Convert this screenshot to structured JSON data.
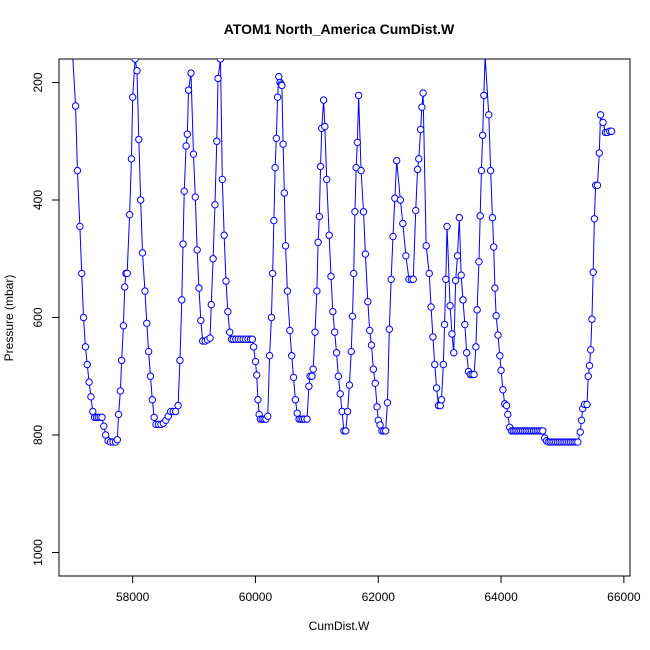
{
  "chart_data": {
    "type": "line",
    "title": "ATOM1 North_America CumDist.W",
    "xlabel": "CumDist.W",
    "ylabel": "Pressure (mbar)",
    "xlim": [
      56800,
      66100
    ],
    "ylim": [
      1040,
      160
    ],
    "y_reversed": true,
    "grid": false,
    "legend": "none",
    "x_ticks": [
      58000,
      60000,
      62000,
      64000,
      66000
    ],
    "y_ticks": [
      200,
      400,
      600,
      800,
      1000
    ],
    "line_color": "#0000ff",
    "marker": "open-circle",
    "series": [
      {
        "values": [
          [
            57020,
            150
          ],
          [
            57070,
            240
          ],
          [
            57100,
            350
          ],
          [
            57140,
            445
          ],
          [
            57170,
            525
          ],
          [
            57200,
            600
          ],
          [
            57230,
            650
          ],
          [
            57260,
            680
          ],
          [
            57290,
            710
          ],
          [
            57320,
            735
          ],
          [
            57350,
            760
          ],
          [
            57380,
            770
          ],
          [
            57410,
            770
          ],
          [
            57440,
            770
          ],
          [
            57470,
            770
          ],
          [
            57500,
            770
          ],
          [
            57530,
            785
          ],
          [
            57560,
            800
          ],
          [
            57600,
            810
          ],
          [
            57640,
            812
          ],
          [
            57680,
            812
          ],
          [
            57720,
            812
          ],
          [
            57750,
            808
          ],
          [
            57770,
            765
          ],
          [
            57800,
            725
          ],
          [
            57820,
            673
          ],
          [
            57850,
            614
          ],
          [
            57870,
            548
          ],
          [
            57890,
            525
          ],
          [
            57910,
            525
          ],
          [
            57950,
            425
          ],
          [
            57980,
            330
          ],
          [
            58000,
            225
          ],
          [
            58040,
            160
          ],
          [
            58070,
            180
          ],
          [
            58100,
            297
          ],
          [
            58130,
            400
          ],
          [
            58160,
            490
          ],
          [
            58200,
            555
          ],
          [
            58230,
            610
          ],
          [
            58260,
            658
          ],
          [
            58290,
            700
          ],
          [
            58320,
            740
          ],
          [
            58350,
            770
          ],
          [
            58380,
            782
          ],
          [
            58420,
            782
          ],
          [
            58460,
            782
          ],
          [
            58500,
            780
          ],
          [
            58540,
            775
          ],
          [
            58580,
            768
          ],
          [
            58620,
            760
          ],
          [
            58660,
            760
          ],
          [
            58700,
            760
          ],
          [
            58740,
            750
          ],
          [
            58770,
            673
          ],
          [
            58800,
            570
          ],
          [
            58820,
            475
          ],
          [
            58840,
            385
          ],
          [
            58870,
            308
          ],
          [
            58890,
            288
          ],
          [
            58910,
            213
          ],
          [
            58950,
            184
          ],
          [
            58990,
            322
          ],
          [
            59020,
            395
          ],
          [
            59050,
            485
          ],
          [
            59080,
            550
          ],
          [
            59110,
            605
          ],
          [
            59140,
            640
          ],
          [
            59180,
            640
          ],
          [
            59220,
            638
          ],
          [
            59260,
            635
          ],
          [
            59280,
            578
          ],
          [
            59310,
            500
          ],
          [
            59340,
            408
          ],
          [
            59370,
            300
          ],
          [
            59390,
            193
          ],
          [
            59430,
            160
          ],
          [
            59460,
            365
          ],
          [
            59490,
            460
          ],
          [
            59520,
            538
          ],
          [
            59550,
            590
          ],
          [
            59580,
            625
          ],
          [
            59610,
            637
          ],
          [
            59640,
            637
          ],
          [
            59680,
            637
          ],
          [
            59720,
            637
          ],
          [
            59760,
            637
          ],
          [
            59800,
            637
          ],
          [
            59840,
            637
          ],
          [
            59880,
            637
          ],
          [
            59920,
            637
          ],
          [
            59950,
            637
          ],
          [
            59970,
            650
          ],
          [
            60000,
            675
          ],
          [
            60020,
            698
          ],
          [
            60040,
            740
          ],
          [
            60060,
            765
          ],
          [
            60080,
            773
          ],
          [
            60110,
            773
          ],
          [
            60140,
            773
          ],
          [
            60170,
            773
          ],
          [
            60200,
            768
          ],
          [
            60230,
            665
          ],
          [
            60260,
            600
          ],
          [
            60280,
            525
          ],
          [
            60300,
            435
          ],
          [
            60320,
            345
          ],
          [
            60340,
            295
          ],
          [
            60360,
            225
          ],
          [
            60380,
            190
          ],
          [
            60400,
            200
          ],
          [
            60420,
            203
          ],
          [
            60430,
            205
          ],
          [
            60450,
            305
          ],
          [
            60470,
            388
          ],
          [
            60490,
            478
          ],
          [
            60520,
            555
          ],
          [
            60560,
            622
          ],
          [
            60590,
            665
          ],
          [
            60620,
            702
          ],
          [
            60650,
            740
          ],
          [
            60680,
            763
          ],
          [
            60710,
            773
          ],
          [
            60740,
            773
          ],
          [
            60770,
            773
          ],
          [
            60800,
            773
          ],
          [
            60840,
            773
          ],
          [
            60870,
            717
          ],
          [
            60890,
            700
          ],
          [
            60920,
            700
          ],
          [
            60940,
            688
          ],
          [
            60970,
            625
          ],
          [
            61000,
            555
          ],
          [
            61020,
            472
          ],
          [
            61040,
            428
          ],
          [
            61060,
            343
          ],
          [
            61080,
            278
          ],
          [
            61110,
            230
          ],
          [
            61130,
            275
          ],
          [
            61160,
            365
          ],
          [
            61200,
            460
          ],
          [
            61230,
            530
          ],
          [
            61260,
            590
          ],
          [
            61290,
            625
          ],
          [
            61320,
            660
          ],
          [
            61350,
            700
          ],
          [
            61380,
            730
          ],
          [
            61410,
            760
          ],
          [
            61440,
            793
          ],
          [
            61470,
            793
          ],
          [
            61500,
            760
          ],
          [
            61530,
            715
          ],
          [
            61560,
            658
          ],
          [
            61580,
            598
          ],
          [
            61600,
            525
          ],
          [
            61620,
            420
          ],
          [
            61640,
            345
          ],
          [
            61660,
            302
          ],
          [
            61680,
            222
          ],
          [
            61720,
            350
          ],
          [
            61760,
            420
          ],
          [
            61790,
            492
          ],
          [
            61830,
            573
          ],
          [
            61860,
            622
          ],
          [
            61890,
            647
          ],
          [
            61920,
            688
          ],
          [
            61950,
            712
          ],
          [
            61980,
            752
          ],
          [
            62000,
            775
          ],
          [
            62030,
            783
          ],
          [
            62060,
            793
          ],
          [
            62090,
            793
          ],
          [
            62120,
            793
          ],
          [
            62150,
            745
          ],
          [
            62180,
            620
          ],
          [
            62210,
            535
          ],
          [
            62240,
            462
          ],
          [
            62270,
            397
          ],
          [
            62300,
            333
          ],
          [
            62360,
            400
          ],
          [
            62400,
            440
          ],
          [
            62450,
            495
          ],
          [
            62500,
            535
          ],
          [
            62540,
            535
          ],
          [
            62570,
            535
          ],
          [
            62610,
            418
          ],
          [
            62640,
            348
          ],
          [
            62660,
            330
          ],
          [
            62690,
            280
          ],
          [
            62710,
            242
          ],
          [
            62730,
            218
          ],
          [
            62780,
            478
          ],
          [
            62830,
            525
          ],
          [
            62860,
            582
          ],
          [
            62890,
            633
          ],
          [
            62920,
            680
          ],
          [
            62950,
            720
          ],
          [
            62980,
            750
          ],
          [
            63010,
            750
          ],
          [
            63030,
            740
          ],
          [
            63060,
            680
          ],
          [
            63080,
            612
          ],
          [
            63100,
            535
          ],
          [
            63120,
            445
          ],
          [
            63170,
            580
          ],
          [
            63200,
            628
          ],
          [
            63230,
            660
          ],
          [
            63260,
            537
          ],
          [
            63290,
            495
          ],
          [
            63320,
            430
          ],
          [
            63350,
            528
          ],
          [
            63380,
            570
          ],
          [
            63410,
            612
          ],
          [
            63440,
            660
          ],
          [
            63470,
            692
          ],
          [
            63500,
            697
          ],
          [
            63530,
            697
          ],
          [
            63560,
            697
          ],
          [
            63590,
            650
          ],
          [
            63610,
            587
          ],
          [
            63640,
            505
          ],
          [
            63660,
            427
          ],
          [
            63680,
            350
          ],
          [
            63700,
            290
          ],
          [
            63720,
            222
          ],
          [
            63740,
            155
          ],
          [
            63800,
            255
          ],
          [
            63830,
            350
          ],
          [
            63860,
            430
          ],
          [
            63880,
            480
          ],
          [
            63900,
            550
          ],
          [
            63920,
            597
          ],
          [
            63950,
            630
          ],
          [
            63980,
            665
          ],
          [
            64000,
            690
          ],
          [
            64030,
            723
          ],
          [
            64060,
            747
          ],
          [
            64090,
            750
          ],
          [
            64110,
            765
          ],
          [
            64140,
            787
          ],
          [
            64170,
            793
          ],
          [
            64200,
            793
          ],
          [
            64230,
            793
          ],
          [
            64260,
            793
          ],
          [
            64290,
            793
          ],
          [
            64320,
            793
          ],
          [
            64350,
            793
          ],
          [
            64380,
            793
          ],
          [
            64410,
            793
          ],
          [
            64440,
            793
          ],
          [
            64470,
            793
          ],
          [
            64500,
            793
          ],
          [
            64530,
            793
          ],
          [
            64560,
            793
          ],
          [
            64590,
            793
          ],
          [
            64620,
            793
          ],
          [
            64650,
            793
          ],
          [
            64680,
            793
          ],
          [
            64710,
            805
          ],
          [
            64740,
            810
          ],
          [
            64770,
            812
          ],
          [
            64800,
            812
          ],
          [
            64830,
            812
          ],
          [
            64860,
            812
          ],
          [
            64890,
            812
          ],
          [
            64920,
            812
          ],
          [
            64950,
            812
          ],
          [
            64980,
            812
          ],
          [
            65010,
            812
          ],
          [
            65040,
            812
          ],
          [
            65070,
            812
          ],
          [
            65100,
            812
          ],
          [
            65130,
            812
          ],
          [
            65160,
            812
          ],
          [
            65190,
            812
          ],
          [
            65220,
            812
          ],
          [
            65250,
            812
          ],
          [
            65290,
            795
          ],
          [
            65310,
            775
          ],
          [
            65330,
            755
          ],
          [
            65360,
            748
          ],
          [
            65400,
            748
          ],
          [
            65420,
            700
          ],
          [
            65440,
            682
          ],
          [
            65460,
            655
          ],
          [
            65480,
            603
          ],
          [
            65500,
            523
          ],
          [
            65520,
            432
          ],
          [
            65540,
            375
          ],
          [
            65570,
            375
          ],
          [
            65600,
            320
          ],
          [
            65620,
            255
          ],
          [
            65660,
            268
          ],
          [
            65700,
            285
          ],
          [
            65730,
            285
          ],
          [
            65770,
            283
          ],
          [
            65800,
            283
          ]
        ]
      }
    ]
  }
}
